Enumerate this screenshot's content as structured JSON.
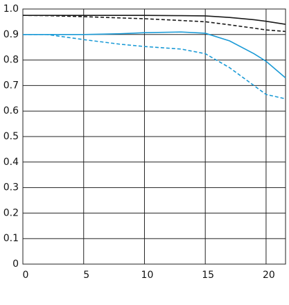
{
  "chart_data": {
    "type": "line",
    "x": [
      0,
      2,
      5,
      8,
      10,
      13,
      15,
      17,
      19,
      20,
      21.6
    ],
    "series": [
      {
        "color": "#1a1a1a",
        "dash": false,
        "values": [
          0.975,
          0.975,
          0.975,
          0.975,
          0.975,
          0.974,
          0.973,
          0.967,
          0.958,
          0.952,
          0.94
        ]
      },
      {
        "color": "#1a1a1a",
        "dash": true,
        "values": [
          0.975,
          0.974,
          0.97,
          0.965,
          0.962,
          0.955,
          0.95,
          0.938,
          0.925,
          0.918,
          0.912
        ]
      },
      {
        "color": "#1a9ad6",
        "dash": false,
        "values": [
          0.9,
          0.9,
          0.9,
          0.903,
          0.907,
          0.91,
          0.905,
          0.875,
          0.825,
          0.795,
          0.73
        ]
      },
      {
        "color": "#1a9ad6",
        "dash": true,
        "values": [
          0.9,
          0.9,
          0.88,
          0.862,
          0.853,
          0.843,
          0.825,
          0.77,
          0.7,
          0.665,
          0.648
        ]
      }
    ],
    "xlim": [
      0,
      21.6
    ],
    "xticks": [
      0,
      5,
      10,
      15,
      20
    ],
    "ylim": [
      0,
      1
    ],
    "yticks": [
      0,
      0.1,
      0.2,
      0.3,
      0.4,
      0.5,
      0.6,
      0.7,
      0.8,
      0.9,
      {
        "value": 1,
        "label": "1.0"
      }
    ],
    "grid": true
  }
}
